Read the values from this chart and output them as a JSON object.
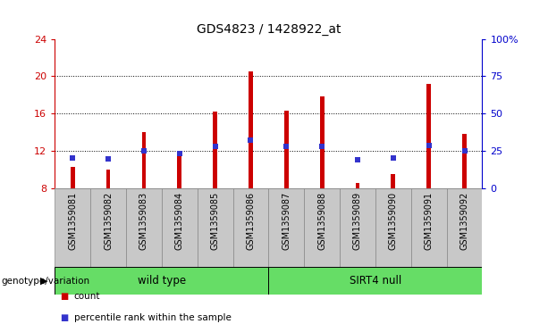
{
  "title": "GDS4823 / 1428922_at",
  "samples": [
    "GSM1359081",
    "GSM1359082",
    "GSM1359083",
    "GSM1359084",
    "GSM1359085",
    "GSM1359086",
    "GSM1359087",
    "GSM1359088",
    "GSM1359089",
    "GSM1359090",
    "GSM1359091",
    "GSM1359092"
  ],
  "counts": [
    10.3,
    10.0,
    14.0,
    11.6,
    16.2,
    20.5,
    16.3,
    17.8,
    8.5,
    9.5,
    19.2,
    13.8
  ],
  "percentile_ranks": [
    11.2,
    11.1,
    12.0,
    11.7,
    12.5,
    13.1,
    12.5,
    12.5,
    11.0,
    11.2,
    12.6,
    12.0
  ],
  "ymin": 8,
  "ymax": 24,
  "yticks_left": [
    8,
    12,
    16,
    20,
    24
  ],
  "right_yticks_vals": [
    0,
    25,
    50,
    75,
    100
  ],
  "right_ytick_labels": [
    "0",
    "25",
    "50",
    "75",
    "100%"
  ],
  "bar_color": "#CC0000",
  "dot_color": "#3333CC",
  "grid_color": "black",
  "bg_color": "#C8C8C8",
  "left_axis_color": "#CC0000",
  "right_axis_color": "#0000CC",
  "legend_items": [
    {
      "color": "#CC0000",
      "label": "count"
    },
    {
      "color": "#3333CC",
      "label": "percentile rank within the sample"
    }
  ],
  "group_label": "genotype/variation",
  "groups": [
    {
      "label": "wild type",
      "xstart": 0,
      "xend": 6,
      "color": "#66DD66"
    },
    {
      "label": "SIRT4 null",
      "xstart": 6,
      "xend": 12,
      "color": "#66DD66"
    }
  ]
}
